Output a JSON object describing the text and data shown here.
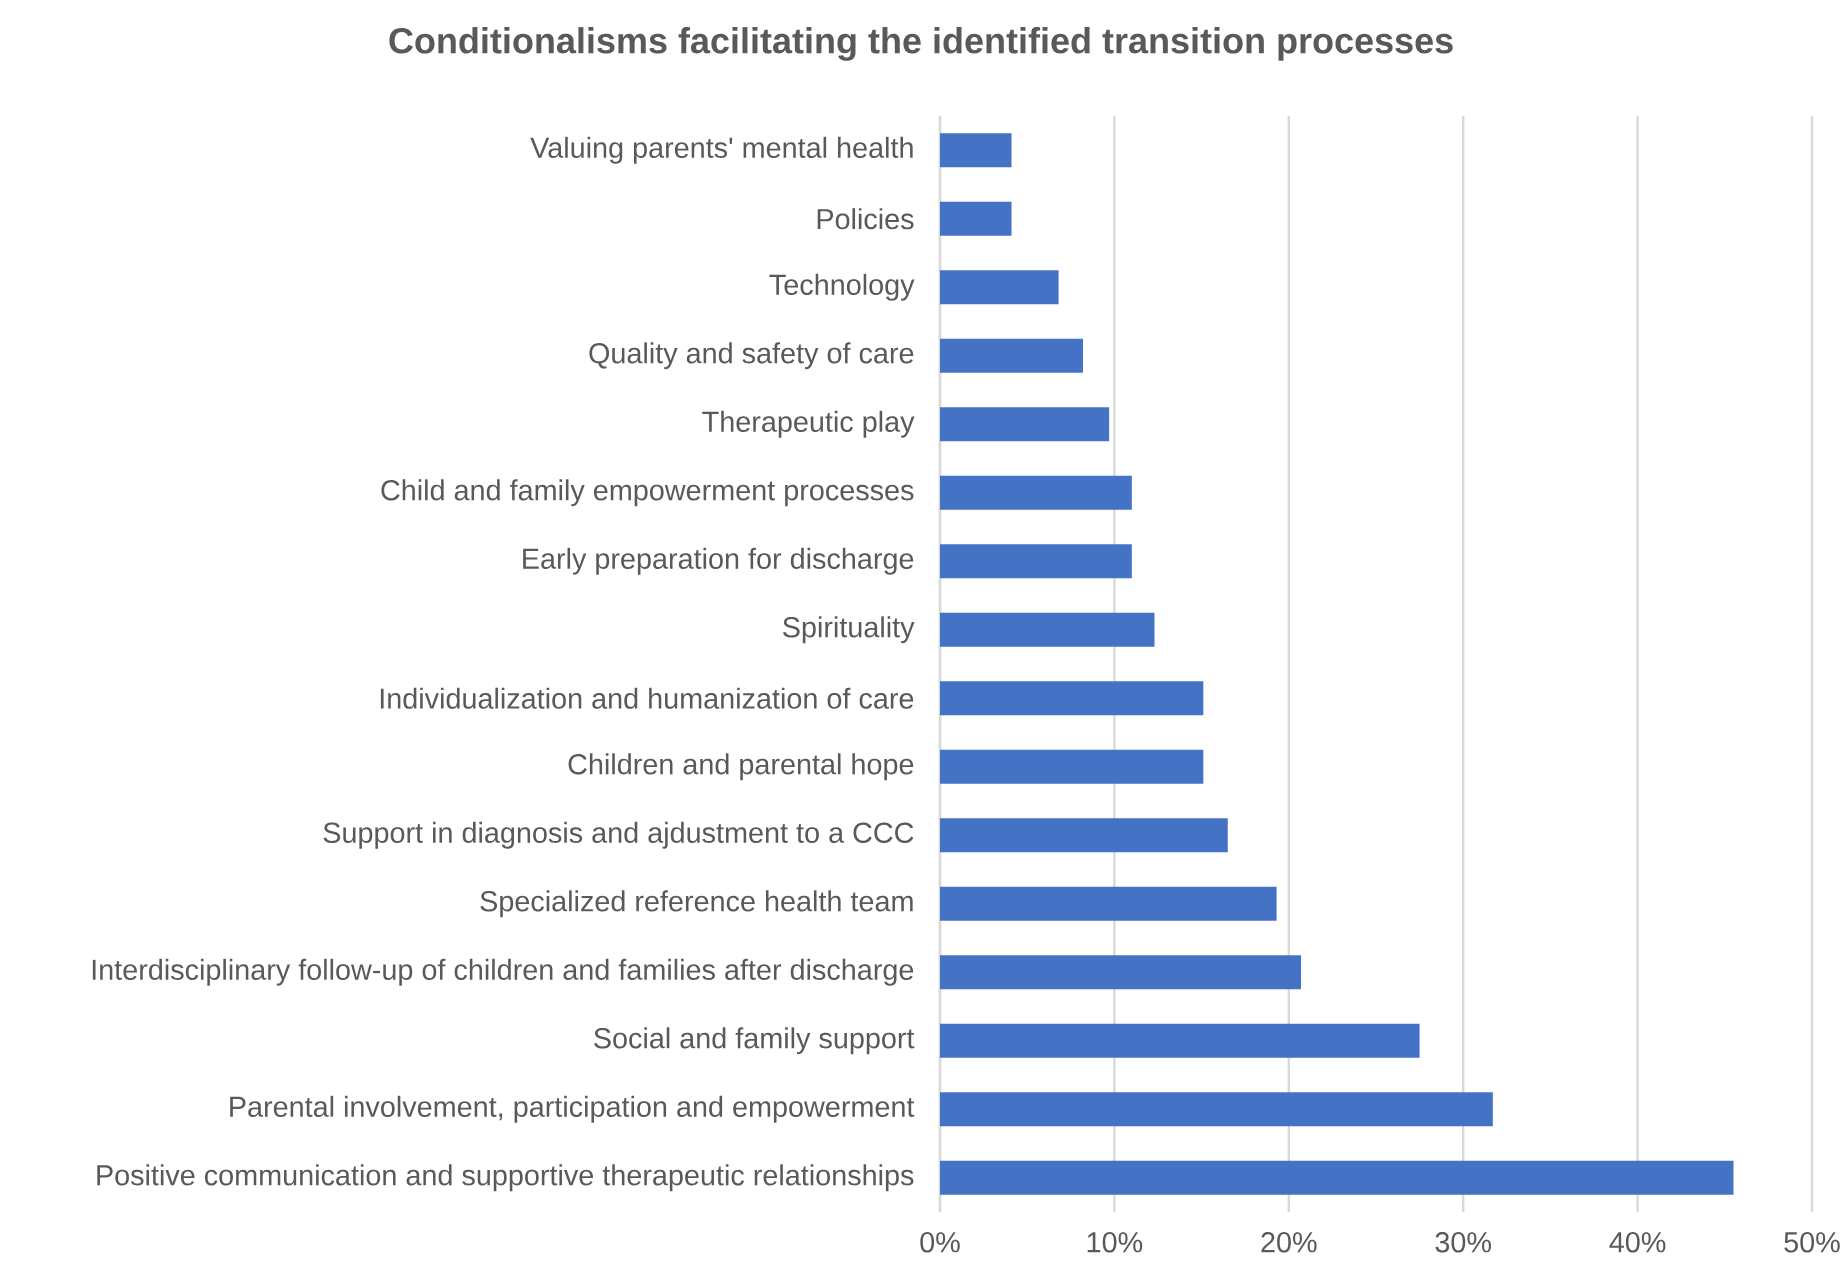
{
  "chart_data": {
    "type": "bar",
    "orientation": "horizontal",
    "title": "Conditionalisms facilitating the identified transition processes",
    "categories": [
      "Valuing parents' mental health",
      "Policies",
      "Technology",
      "Quality and safety of care",
      "Therapeutic play",
      "Child and family empowerment processes",
      "Early preparation for discharge",
      "Spirituality",
      "Individualization and humanization of care",
      "Children and parental hope",
      "Support in diagnosis and ajdustment to a CCC",
      "Specialized reference health team",
      "Interdisciplinary follow-up of children and families after discharge",
      "Social and family support",
      "Parental involvement, participation and empowerment",
      "Positive communication and supportive therapeutic relationships"
    ],
    "values": [
      4.1,
      4.1,
      6.8,
      8.2,
      9.7,
      11.0,
      11.0,
      12.3,
      15.1,
      15.1,
      16.5,
      19.3,
      20.7,
      27.5,
      31.7,
      45.5
    ],
    "color": "#4472c4",
    "xlim": [
      0,
      50
    ],
    "xticks": [
      {
        "value": 0,
        "label": "0%"
      },
      {
        "value": 10,
        "label": "10%"
      },
      {
        "value": 20,
        "label": "20%"
      },
      {
        "value": 30,
        "label": "30%"
      },
      {
        "value": 40,
        "label": "40%"
      },
      {
        "value": 50,
        "label": "50%"
      }
    ],
    "grid": "x"
  }
}
